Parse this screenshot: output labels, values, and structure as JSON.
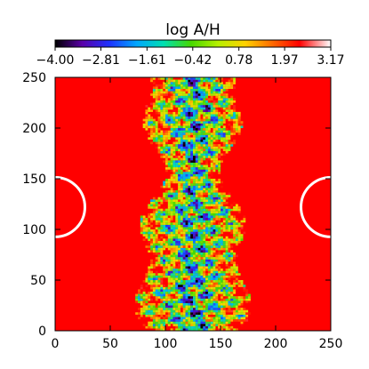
{
  "chart_data": {
    "type": "heatmap",
    "colorbar": {
      "title": "log A/H",
      "ticks": [
        "−4.00",
        "−2.81",
        "−1.61",
        "−0.42",
        "0.78",
        "1.97",
        "3.17"
      ],
      "tick_values": [
        -4.0,
        -2.81,
        -1.61,
        -0.42,
        0.78,
        1.97,
        3.17
      ],
      "range": [
        -4.0,
        3.17
      ],
      "colormap": [
        "#000000",
        "#5a00a8",
        "#1e32ff",
        "#00a6ff",
        "#00e0b0",
        "#46d800",
        "#b6f000",
        "#ffd200",
        "#ff6a00",
        "#ff0000",
        "#ffffff"
      ]
    },
    "xlim": [
      0,
      250
    ],
    "ylim": [
      0,
      250
    ],
    "xticks": [
      0,
      50,
      100,
      150,
      200,
      250
    ],
    "yticks": [
      0,
      50,
      100,
      150,
      200,
      250
    ],
    "xtick_labels": [
      "0",
      "50",
      "100",
      "150",
      "200",
      "250"
    ],
    "ytick_labels": [
      "0",
      "50",
      "100",
      "150",
      "200",
      "250"
    ],
    "xlabel": "",
    "ylabel": "",
    "background_value": 2.8,
    "mixing_region": {
      "x_center": 125,
      "x_half_width_range": [
        30,
        70
      ],
      "y_range": [
        0,
        250
      ],
      "value_range": [
        -4.0,
        3.17
      ]
    },
    "markers": [
      {
        "shape": "semicircle",
        "center": [
          0,
          122
        ],
        "radius": 27,
        "side": "right"
      },
      {
        "shape": "semicircle",
        "center": [
          250,
          122
        ],
        "radius": 27,
        "side": "left"
      }
    ]
  }
}
